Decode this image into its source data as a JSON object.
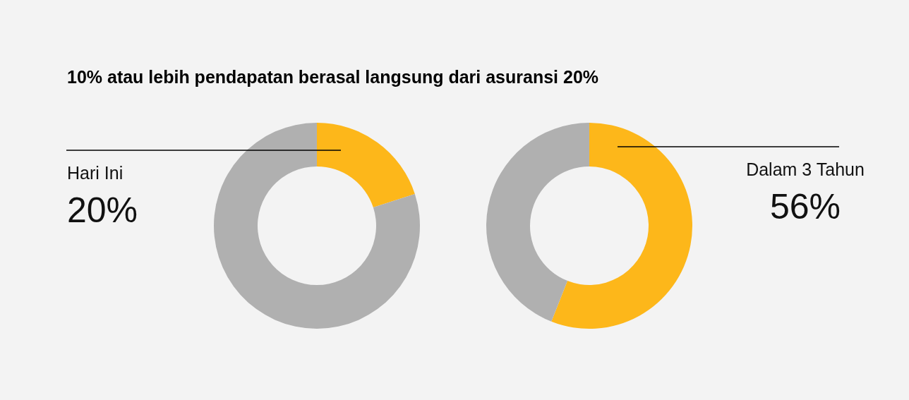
{
  "chart_data": [
    {
      "type": "donut",
      "title": "10% atau lebih pendapatan berasal langsung dari asuransi 20%",
      "categories": [
        "Hari Ini",
        null
      ],
      "values": [
        20,
        80
      ],
      "colors": [
        "#fdb71a",
        "#b0b0b0"
      ],
      "value_labels": [
        "20%",
        null
      ]
    },
    {
      "type": "donut",
      "categories": [
        "Dalam 3 Tahun",
        null
      ],
      "values": [
        56,
        44
      ],
      "colors": [
        "#fdb71a",
        "#b0b0b0"
      ],
      "value_labels": [
        "56%",
        null
      ]
    }
  ]
}
